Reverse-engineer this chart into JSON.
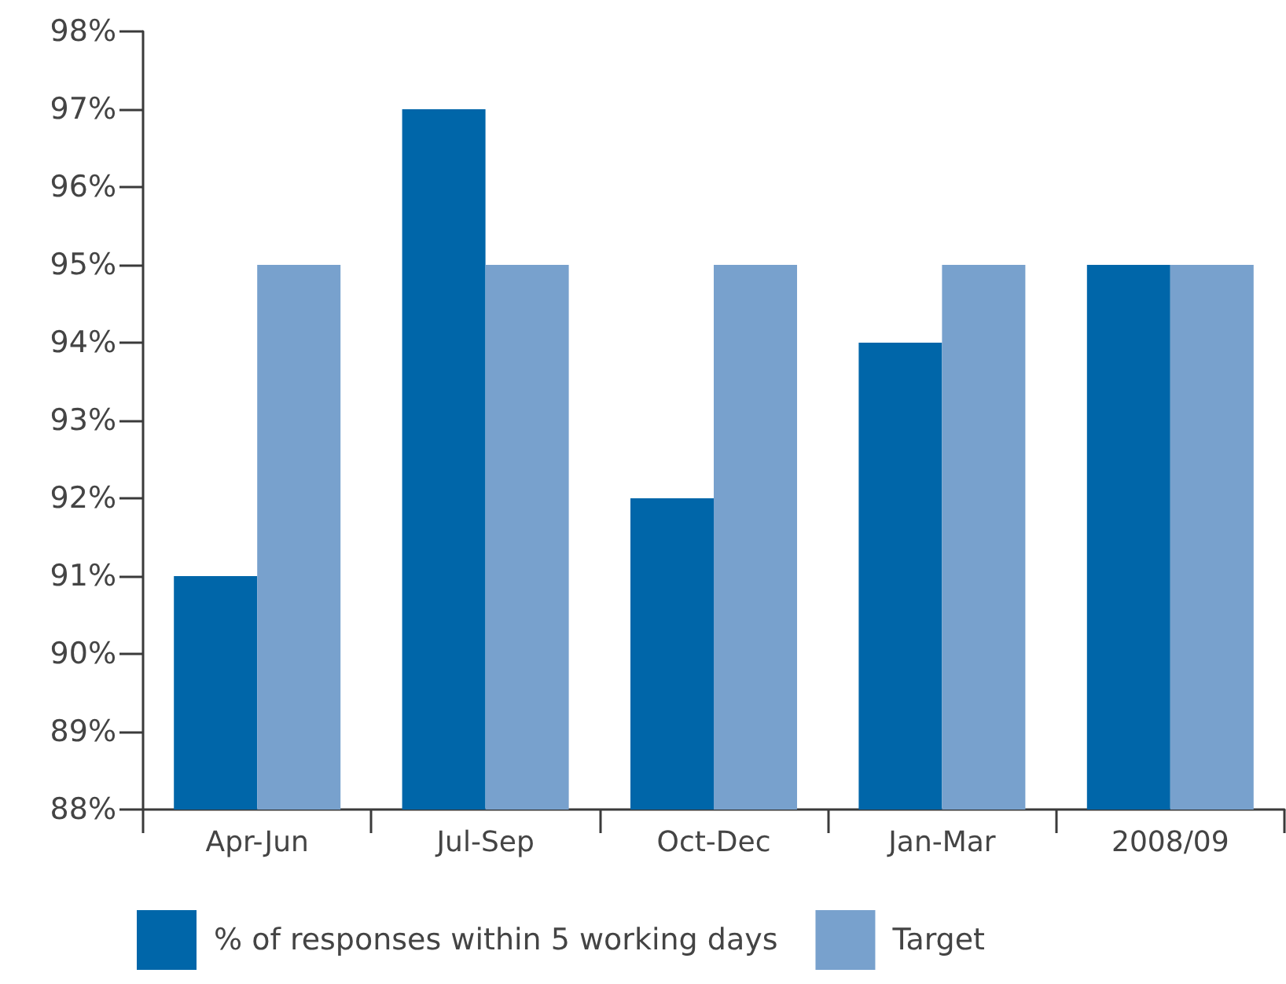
{
  "chart_data": {
    "type": "bar",
    "categories": [
      "Apr-Jun",
      "Jul-Sep",
      "Oct-Dec",
      "Jan-Mar",
      "2008/09"
    ],
    "series": [
      {
        "name": "% of responses within 5 working days",
        "color": "#0066a9",
        "values": [
          91,
          97,
          92,
          94,
          95
        ]
      },
      {
        "name": "Target",
        "color": "#78a1cd",
        "values": [
          95,
          95,
          95,
          95,
          95
        ]
      }
    ],
    "ylim": [
      88,
      98
    ],
    "yticks": [
      {
        "value": 88,
        "label": "88%"
      },
      {
        "value": 89,
        "label": "89%"
      },
      {
        "value": 90,
        "label": "90%"
      },
      {
        "value": 91,
        "label": "91%"
      },
      {
        "value": 92,
        "label": "92%"
      },
      {
        "value": 93,
        "label": "93%"
      },
      {
        "value": 94,
        "label": "94%"
      },
      {
        "value": 95,
        "label": "95%"
      },
      {
        "value": 96,
        "label": "96%"
      },
      {
        "value": 97,
        "label": "97%"
      },
      {
        "value": 98,
        "label": "98%"
      }
    ],
    "grid": false,
    "legend": "bottom"
  }
}
